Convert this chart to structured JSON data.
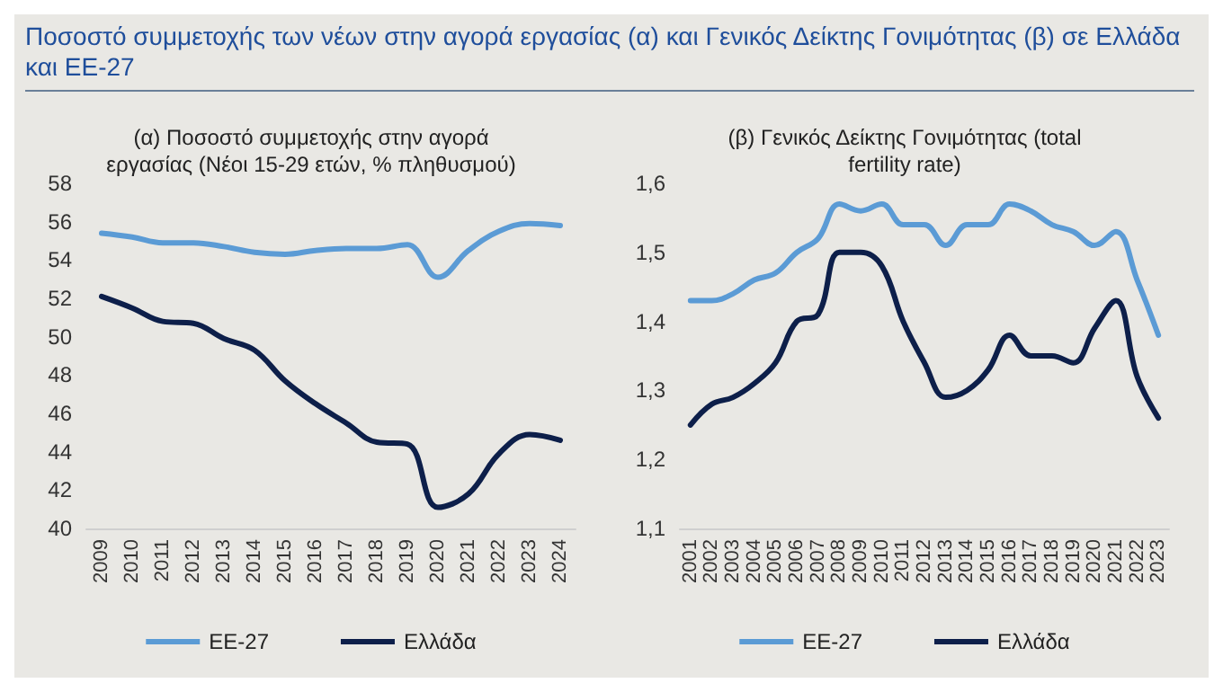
{
  "chart_data": [
    {
      "type": "line",
      "title": "Ποσοστό συμμετοχής των νέων στην αγορά εργασίας (α) και Γενικός Δείκτης Γονιμότητας (β) σε Ελλάδα και ΕΕ-27",
      "subtitle": "(α) Ποσοστό συμμετοχής στην αγορά\nεργασίας (Νέοι 15-29 ετών, % πληθυσμού)",
      "categories": [
        "2009",
        "2010",
        "2011",
        "2012",
        "2013",
        "2014",
        "2015",
        "2016",
        "2017",
        "2018",
        "2019",
        "2020",
        "2021",
        "2022",
        "2023",
        "2024"
      ],
      "series": [
        {
          "name": "ΕΕ-27",
          "color": "#5b9bd5",
          "values": [
            55.4,
            55.2,
            54.9,
            54.9,
            54.7,
            54.4,
            54.3,
            54.5,
            54.6,
            54.6,
            54.8,
            53.1,
            54.5,
            55.5,
            55.9,
            55.8
          ]
        },
        {
          "name": "Ελλάδα",
          "color": "#0d1f4a",
          "values": [
            52.1,
            51.5,
            50.8,
            50.7,
            49.9,
            49.3,
            47.7,
            46.5,
            45.5,
            44.5,
            44.4,
            41.1,
            41.8,
            43.9,
            44.9,
            44.6
          ]
        }
      ],
      "ylim": [
        40,
        58
      ],
      "yticks": [
        40,
        42,
        44,
        46,
        48,
        50,
        52,
        54,
        56,
        58
      ],
      "grid": false,
      "legend": "bottom",
      "marker": "none",
      "line_style": "solid"
    },
    {
      "type": "line",
      "title": "(β) Γενικός Δείκτης Γονιμότητας (total\nfertility rate)",
      "categories": [
        "2001",
        "2002",
        "2003",
        "2004",
        "2005",
        "2006",
        "2007",
        "2008",
        "2009",
        "2010",
        "2011",
        "2012",
        "2013",
        "2014",
        "2015",
        "2016",
        "2017",
        "2018",
        "2019",
        "2020",
        "2021",
        "2022",
        "2023"
      ],
      "series": [
        {
          "name": "ΕΕ-27",
          "color": "#5b9bd5",
          "values": [
            1.43,
            1.43,
            1.44,
            1.46,
            1.47,
            1.5,
            1.52,
            1.57,
            1.56,
            1.57,
            1.54,
            1.54,
            1.51,
            1.54,
            1.54,
            1.57,
            1.56,
            1.54,
            1.53,
            1.51,
            1.53,
            1.46,
            1.38
          ]
        },
        {
          "name": "Ελλάδα",
          "color": "#0d1f4a",
          "values": [
            1.25,
            1.28,
            1.29,
            1.31,
            1.34,
            1.4,
            1.41,
            1.5,
            1.5,
            1.48,
            1.4,
            1.34,
            1.29,
            1.3,
            1.33,
            1.38,
            1.35,
            1.35,
            1.34,
            1.39,
            1.43,
            1.32,
            1.26
          ]
        }
      ],
      "ylim": [
        1.1,
        1.6
      ],
      "yticks": [
        {
          "value": 1.1,
          "label": "1,1"
        },
        {
          "value": 1.2,
          "label": "1,2"
        },
        {
          "value": 1.3,
          "label": "1,3"
        },
        {
          "value": 1.4,
          "label": "1,4"
        },
        {
          "value": 1.5,
          "label": "1,5"
        },
        {
          "value": 1.6,
          "label": "1,6"
        }
      ],
      "grid": false,
      "legend": "bottom",
      "marker": "none",
      "line_style": "solid"
    }
  ]
}
